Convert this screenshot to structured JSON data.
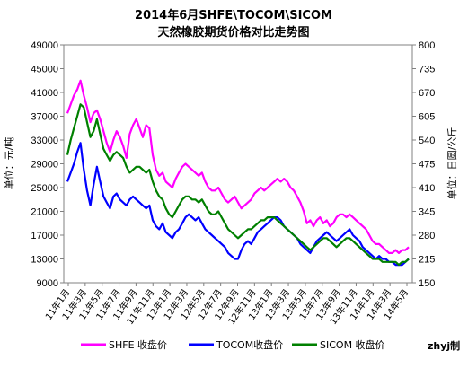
{
  "chart_data": {
    "type": "line",
    "title": "2014年6月SHFE\\TOCOM\\SICOM",
    "subtitle": "天然橡胶期货价格对比走势图",
    "ylabel_left": "单位：元/吨",
    "ylabel_right": "单位：日圆/公斤",
    "ylim_left": [
      9000,
      49000
    ],
    "yticks_left": [
      9000,
      13000,
      17000,
      21000,
      25000,
      29000,
      33000,
      37000,
      41000,
      45000,
      49000
    ],
    "ylim_right": [
      150,
      800
    ],
    "yticks_right": [
      150,
      215,
      280,
      345,
      410,
      475,
      540,
      605,
      670,
      735,
      800
    ],
    "grid": false,
    "legend_position": "bottom",
    "credit": "zhyj制",
    "x_labels": [
      "11年1月",
      "11年3月",
      "11年5月",
      "11年7月",
      "11年9月",
      "11年11月",
      "12年1月",
      "12年3月",
      "12年5月",
      "12年7月",
      "12年9月",
      "12年11月",
      "13年1月",
      "13年3月",
      "13年5月",
      "13年7月",
      "13年9月",
      "13年11月",
      "14年1月",
      "14年3月",
      "14年5月"
    ],
    "series": [
      {
        "name": "SHFE 收盘价",
        "axis": "left",
        "color": "#ff00ff",
        "values": [
          37500,
          39000,
          40500,
          41500,
          43000,
          40500,
          38500,
          36000,
          37500,
          38000,
          36500,
          34500,
          32500,
          31000,
          33000,
          34500,
          33500,
          32000,
          30000,
          34000,
          35500,
          36500,
          35000,
          33500,
          35500,
          35000,
          30500,
          28000,
          27000,
          27500,
          26000,
          25500,
          25000,
          26500,
          27500,
          28500,
          29000,
          28500,
          28000,
          27500,
          27000,
          27500,
          26000,
          25000,
          24500,
          24500,
          25000,
          24000,
          23000,
          22500,
          23000,
          23500,
          22500,
          21500,
          22000,
          22500,
          23000,
          24000,
          24500,
          25000,
          24500,
          25000,
          25500,
          26000,
          26500,
          26000,
          26500,
          26000,
          25000,
          24500,
          23500,
          22500,
          21000,
          19000,
          19500,
          18500,
          19500,
          20000,
          19000,
          19500,
          18500,
          19000,
          20000,
          20500,
          20500,
          20000,
          20500,
          20000,
          19500,
          19000,
          18500,
          18000,
          17000,
          16000,
          15500,
          15500,
          15000,
          14500,
          14000,
          14000,
          14500,
          14000,
          14500,
          14500,
          15000
        ]
      },
      {
        "name": "TOCOM收盘价",
        "axis": "left",
        "color": "#0000ff",
        "values": [
          26000,
          27500,
          29000,
          31000,
          32500,
          28000,
          24500,
          22000,
          25500,
          28500,
          26000,
          23500,
          22500,
          21500,
          23500,
          24000,
          23000,
          22500,
          22000,
          23000,
          23500,
          23000,
          22500,
          22000,
          21500,
          22000,
          19500,
          18500,
          18000,
          19000,
          17500,
          17000,
          16500,
          17500,
          18000,
          19000,
          20000,
          20500,
          20000,
          19500,
          20000,
          19000,
          18000,
          17500,
          17000,
          16500,
          16000,
          15500,
          15000,
          14000,
          13500,
          13000,
          13000,
          14500,
          15500,
          16000,
          15500,
          16500,
          17500,
          18000,
          18500,
          19000,
          19500,
          20000,
          20000,
          19500,
          18500,
          18000,
          17500,
          17000,
          16500,
          15500,
          15000,
          14500,
          14000,
          15000,
          16000,
          16500,
          17000,
          17500,
          17000,
          16500,
          16000,
          16500,
          17000,
          17500,
          18000,
          17000,
          16500,
          16000,
          15000,
          14500,
          14000,
          13500,
          13000,
          13500,
          13000,
          13000,
          12500,
          12500,
          12000,
          12000,
          12000,
          12500,
          13000
        ]
      },
      {
        "name": "SICOM 收盘价",
        "axis": "left",
        "color": "#008000",
        "values": [
          30500,
          33000,
          35000,
          37000,
          39000,
          38500,
          36000,
          33500,
          34500,
          36500,
          34000,
          31500,
          30500,
          29500,
          30500,
          31000,
          30500,
          30000,
          28500,
          27500,
          28000,
          28500,
          28500,
          28000,
          27500,
          28000,
          26000,
          24500,
          23500,
          23000,
          21500,
          20500,
          20000,
          21000,
          22000,
          23000,
          23500,
          23500,
          23000,
          23000,
          22500,
          23000,
          22000,
          21000,
          20500,
          20500,
          21000,
          20000,
          19000,
          18000,
          17500,
          17000,
          16500,
          17000,
          17500,
          18000,
          18000,
          18500,
          19000,
          19500,
          19500,
          20000,
          20000,
          20000,
          19500,
          19000,
          18500,
          18000,
          17500,
          17000,
          16500,
          16000,
          15500,
          15000,
          14500,
          15000,
          15500,
          16000,
          16500,
          16500,
          16000,
          15500,
          15000,
          15500,
          16000,
          16500,
          16500,
          16000,
          15500,
          15000,
          14500,
          14000,
          13500,
          13000,
          13000,
          13000,
          12500,
          12500,
          12500,
          12500,
          12500,
          12000,
          12500,
          12500,
          13000
        ]
      }
    ]
  }
}
